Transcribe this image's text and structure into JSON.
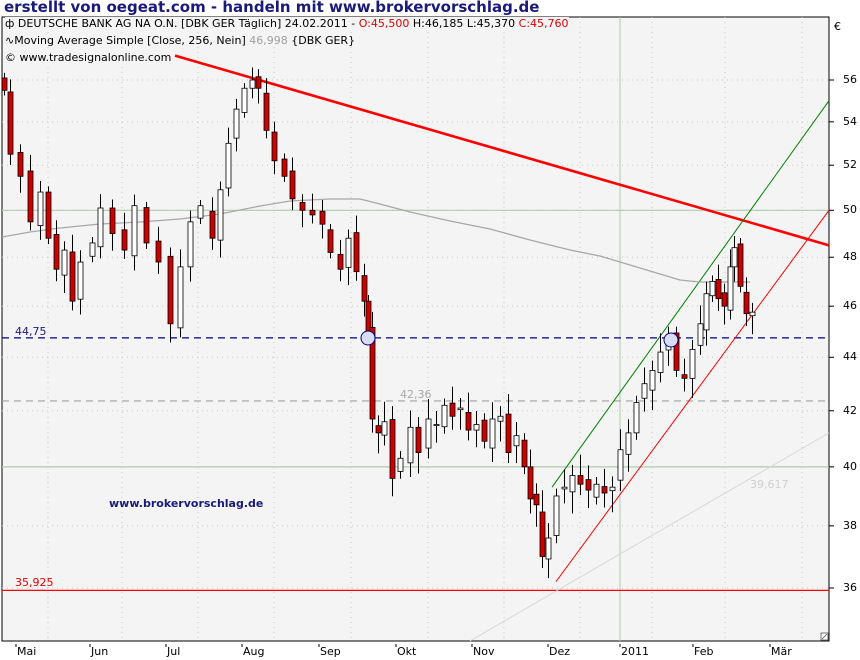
{
  "banner": "erstellt von oegeat.com - handeln mit www.brokervorschlag.de",
  "legend": {
    "line1_prefix": "DEUTSCHE BANK AG NA O.N. [DBK GER  Täglich] 24.02.2011 - ",
    "open": "O:45,500",
    "hlc": " H:46,185 L:45,370 ",
    "close": "C:45,760",
    "line2_prefix": "Moving Average Simple [Close, 256, Nein] ",
    "ma_value": "46,998",
    "line2_suffix": " {DBK GER}",
    "line3": "© www.tradesignalonline.com"
  },
  "watermark": "www.brokervorschlag.de",
  "currency_symbol": "€",
  "level_labels": {
    "support_44": "44,75",
    "gray_42": "42,36",
    "low_35": "35,925",
    "trend_39": "39,617"
  },
  "colors": {
    "background": "#f4f4f4",
    "bear_candle": "#cc0000",
    "bull_candle": "#ffffff",
    "resistance_line": "#ff0000",
    "upper_channel": "#008000",
    "lower_channel": "#ff0000",
    "moving_average": "#a8a8a8",
    "support_dashed": "#000080",
    "gray_dashed": "#a0a0a0",
    "horizontal_green": "#b0ccb0"
  },
  "chart_data": {
    "type": "candlestick",
    "title": "DEUTSCHE BANK AG NA O.N. [DBK GER Täglich] 24.02.2011",
    "ohlc_last": {
      "open": 45.5,
      "high": 46.185,
      "low": 45.37,
      "close": 45.76
    },
    "indicator": {
      "name": "Moving Average Simple [Close, 256, Nein]",
      "last_value": 46.998
    },
    "y_axis": {
      "ticks": [
        36,
        38,
        40,
        42,
        44,
        46,
        48,
        50,
        52,
        54,
        56
      ],
      "range": [
        34.8,
        58
      ],
      "unit": "€",
      "position": "right"
    },
    "x_axis": {
      "ticks": [
        "Mai",
        "Jun",
        "Jul",
        "Aug",
        "Sep",
        "Okt",
        "Nov",
        "Dez",
        "2011",
        "Feb",
        "Mär"
      ]
    },
    "horizontal_levels": [
      {
        "value": 44.75,
        "label": "44,75",
        "style": "dashed",
        "color": "#000080"
      },
      {
        "value": 42.36,
        "label": "42,36",
        "style": "dashed",
        "color": "#a0a0a0"
      },
      {
        "value": 35.925,
        "label": "35,925",
        "style": "solid",
        "color": "#ff0000"
      },
      {
        "value": 50.0,
        "label": "",
        "style": "solid",
        "color": "#b0ccb0"
      },
      {
        "value": 40.0,
        "label": "",
        "style": "solid",
        "color": "#b0ccb0"
      }
    ],
    "trendlines": [
      {
        "name": "resistance",
        "color": "#ff0000",
        "from": [
          "Jul",
          57.2
        ],
        "to": [
          "Mär+",
          48.5
        ]
      },
      {
        "name": "upper-channel",
        "color": "#008000",
        "from": [
          "Dez",
          39.2
        ],
        "to": [
          "Mär+",
          55.0
        ]
      },
      {
        "name": "lower-channel",
        "color": "#ff0000",
        "from": [
          "Dez",
          36.2
        ],
        "to": [
          "Mär+",
          50.0
        ]
      },
      {
        "name": "long-term-support",
        "color": "#d8d8d8",
        "label": "39,617",
        "from": [
          "Nov",
          34.8
        ],
        "to": [
          "Mär+",
          41.2
        ]
      }
    ],
    "monthly_ranges": [
      {
        "month": "Apr-end",
        "high": 57.5,
        "low": 51.0
      },
      {
        "month": "Mai",
        "high": 53.5,
        "low": 45.8
      },
      {
        "month": "Jun",
        "high": 51.0,
        "low": 45.2
      },
      {
        "month": "Jul",
        "high": 52.5,
        "low": 44.8
      },
      {
        "month": "Aug",
        "high": 56.5,
        "low": 51.5
      },
      {
        "month": "Sep",
        "high": 51.5,
        "low": 44.7
      },
      {
        "month": "Okt",
        "high": 42.2,
        "low": 38.8
      },
      {
        "month": "Nov",
        "high": 42.8,
        "low": 38.6
      },
      {
        "month": "Dez",
        "high": 40.4,
        "low": 35.925
      },
      {
        "month": "Jan",
        "high": 44.8,
        "low": 39.2
      },
      {
        "month": "Feb",
        "high": 48.7,
        "low": 44.6
      }
    ],
    "grid": true,
    "legend_position": "top-left"
  }
}
